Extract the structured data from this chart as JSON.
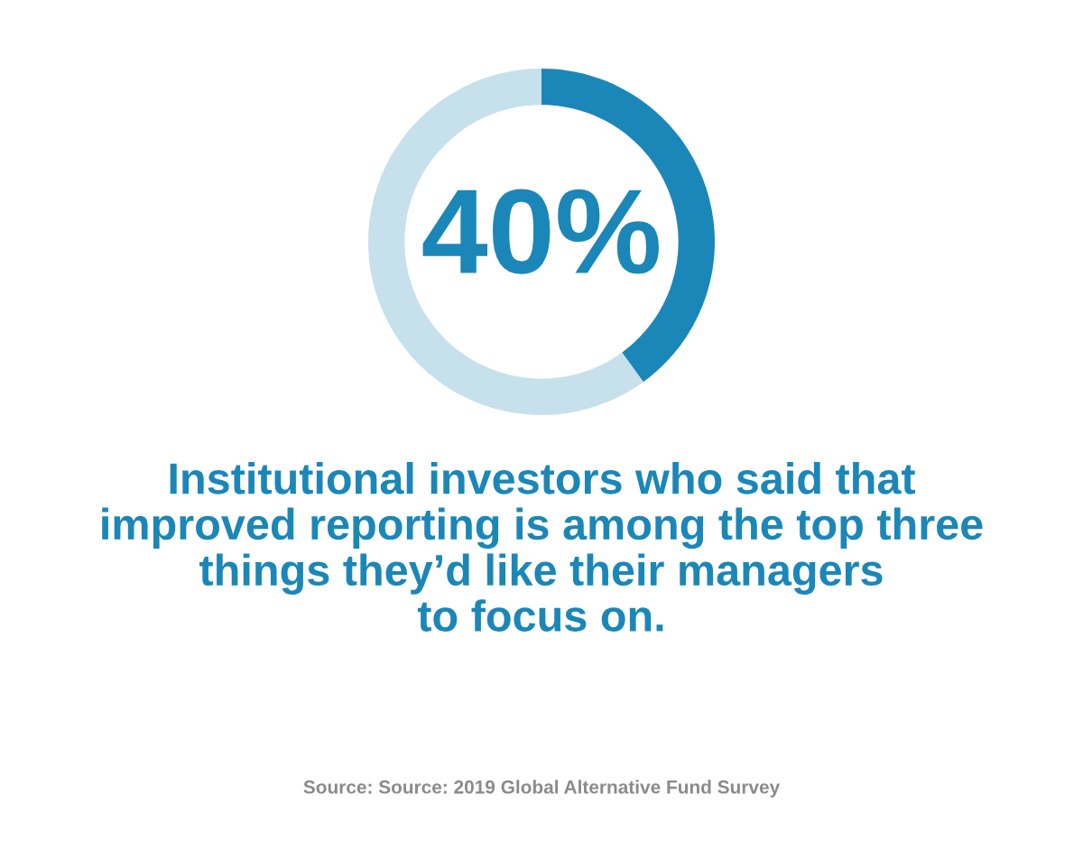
{
  "chart_data": {
    "type": "donut",
    "title": "Institutional investors who said that\nimproved reporting is among the top three\nthings they’d like their managers\nto focus on.",
    "categories": [
      null,
      null
    ],
    "values": [
      40,
      60
    ],
    "colors": [
      "#1a87b8",
      "#c6e0ec"
    ],
    "value_labels": [
      "40%",
      null
    ],
    "annotations": [
      "Source: Source: 2019 Global Alternative Fund Survey"
    ],
    "legend": false
  }
}
